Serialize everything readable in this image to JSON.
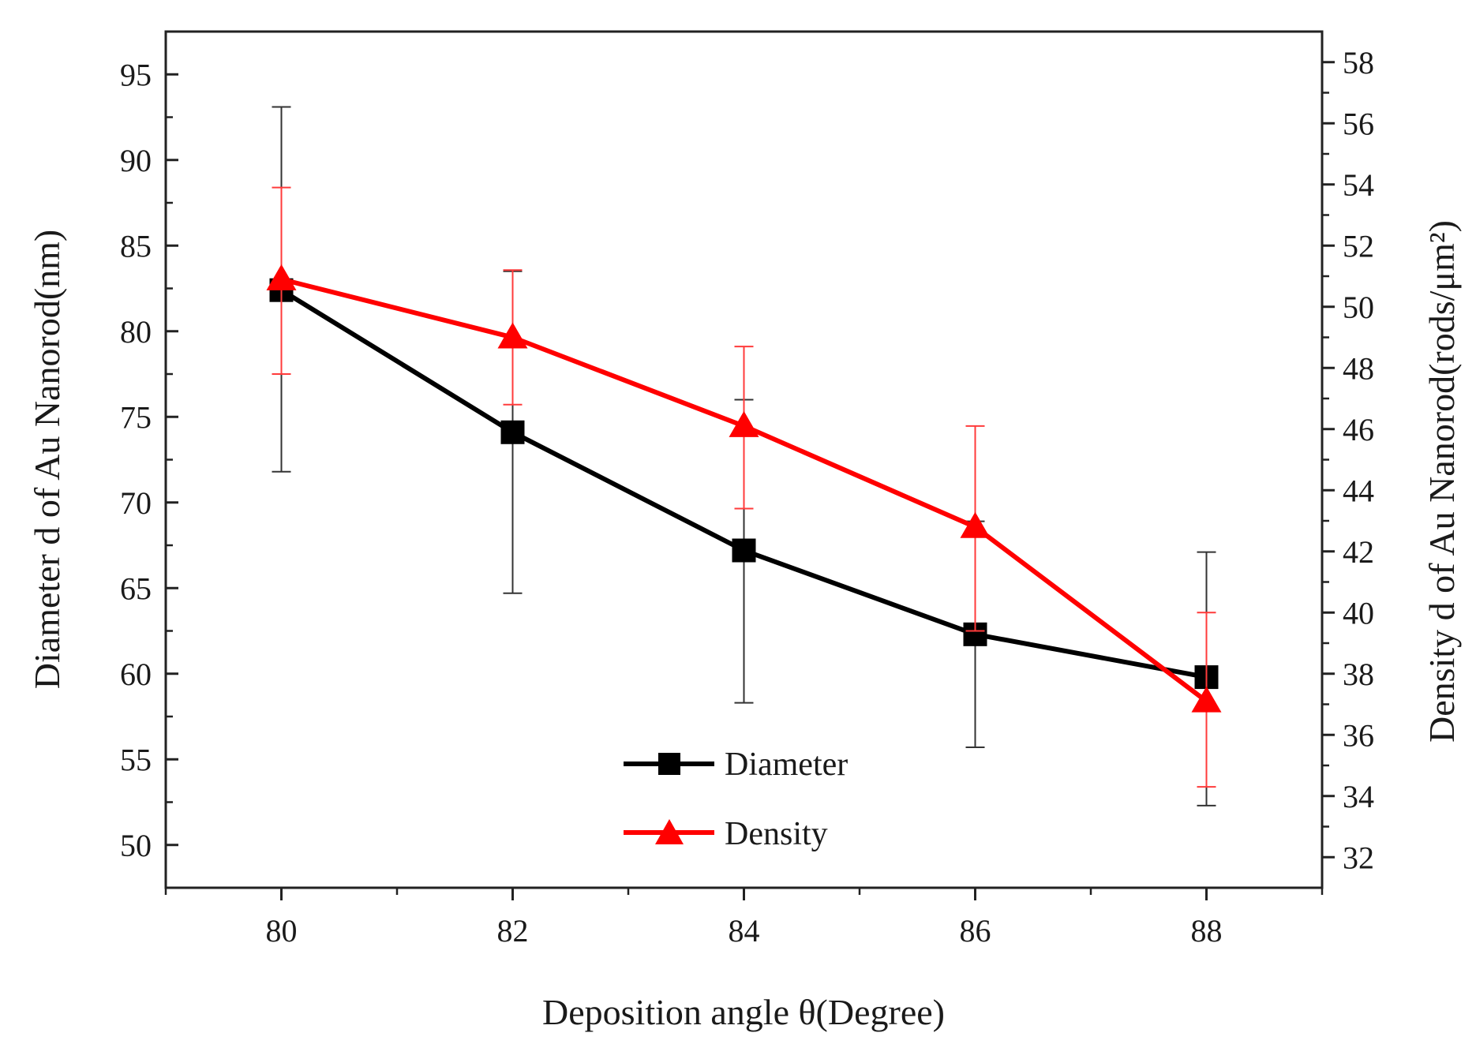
{
  "chart_data": {
    "type": "line",
    "x": [
      80,
      82,
      84,
      86,
      88
    ],
    "xlabel": "Deposition angle θ(Degree)",
    "xlim": [
      79,
      89
    ],
    "xticks": [
      80,
      82,
      84,
      86,
      88
    ],
    "ylabel_left": "Diameter d of Au Nanorod(nm)",
    "ylim_left": [
      47.5,
      97.5
    ],
    "yticks_left": [
      50,
      55,
      60,
      65,
      70,
      75,
      80,
      85,
      90,
      95
    ],
    "ylabel_right": "Density d of Au Nanorod(rods/μm²)",
    "ylim_right": [
      31,
      59
    ],
    "yticks_right": [
      32,
      34,
      36,
      38,
      40,
      42,
      44,
      46,
      48,
      50,
      52,
      54,
      56,
      58
    ],
    "grid": false,
    "legend_position": "bottom-center",
    "series": [
      {
        "name": "Diameter",
        "axis": "left",
        "color": "#000000",
        "marker": "square",
        "values": [
          82.4,
          74.1,
          67.2,
          62.3,
          59.8
        ],
        "error_low": [
          71.8,
          64.7,
          58.3,
          55.7,
          52.3
        ],
        "error_high": [
          93.1,
          83.5,
          76.0,
          68.9,
          67.1
        ]
      },
      {
        "name": "Density",
        "axis": "right",
        "color": "#ff0000",
        "marker": "triangle",
        "values": [
          50.9,
          49.0,
          46.1,
          42.8,
          37.1
        ],
        "error_low": [
          47.8,
          46.8,
          43.4,
          39.4,
          34.3
        ],
        "error_high": [
          53.9,
          51.2,
          48.7,
          46.1,
          40.0
        ]
      }
    ]
  }
}
